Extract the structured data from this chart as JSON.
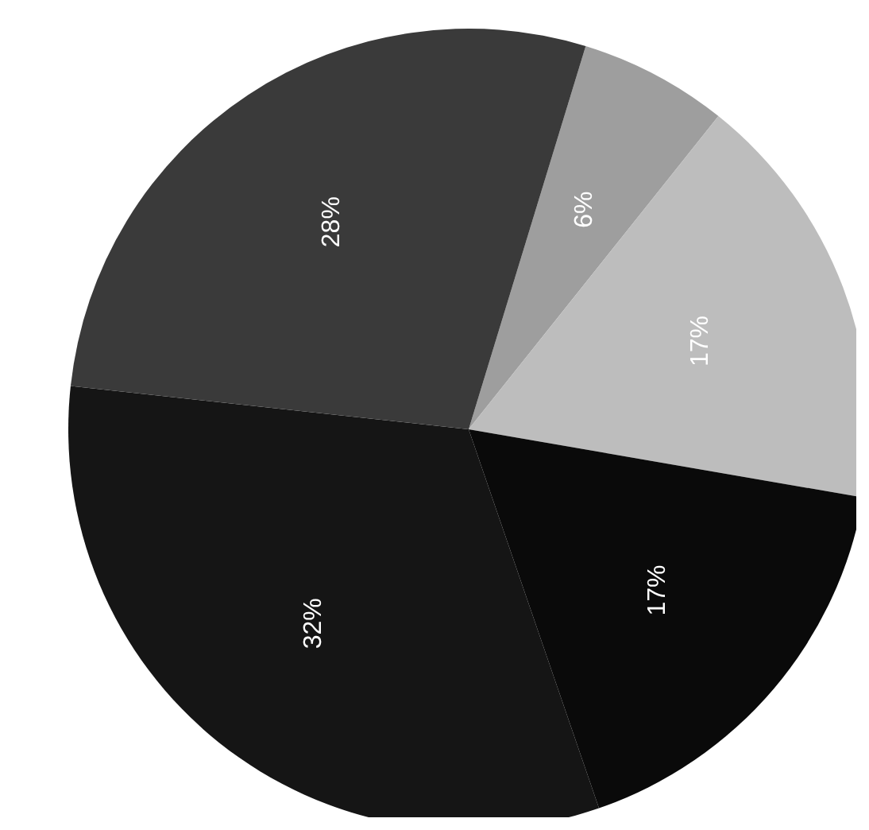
{
  "chart_data": {
    "type": "pie",
    "categories": [
      null,
      null,
      null,
      null,
      null
    ],
    "values": [
      6,
      17,
      17,
      32,
      28
    ],
    "colors": [
      "#9e9e9e",
      "#bdbdbd",
      "#0a0a0a",
      "#151515",
      "#3a3a3a"
    ],
    "value_labels": [
      "6%",
      "17%",
      "17%",
      "32%",
      "28%"
    ],
    "legend": false
  }
}
